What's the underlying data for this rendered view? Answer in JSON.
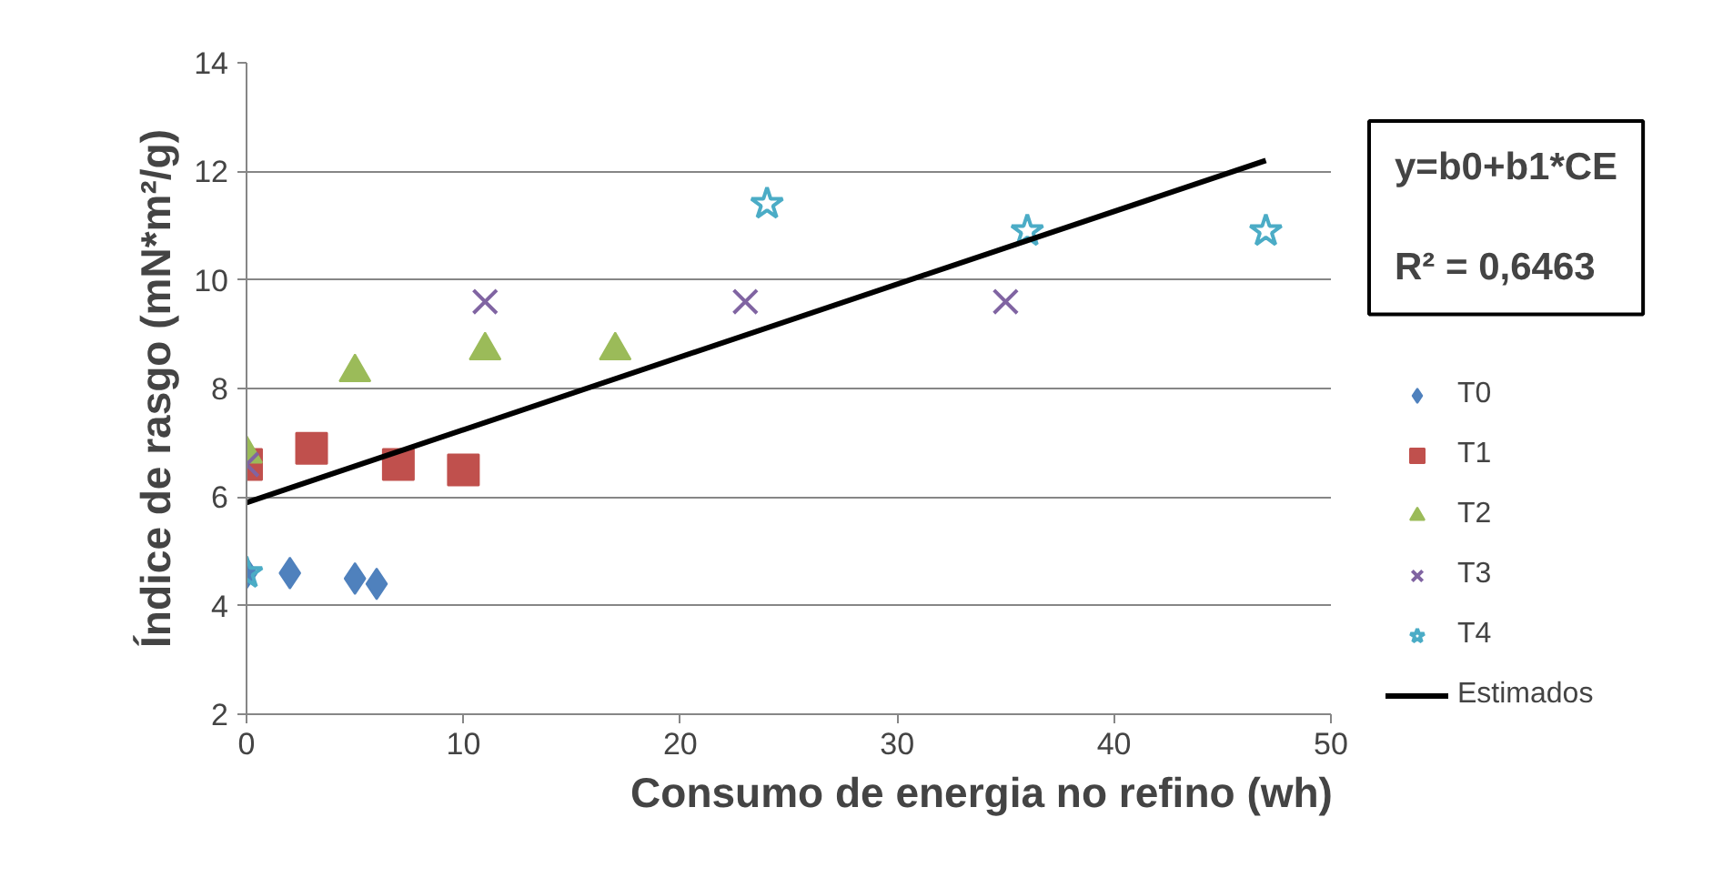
{
  "chart_data": {
    "type": "scatter",
    "xlabel": "Consumo de energia no refino (wh)",
    "ylabel": "Índice de rasgo (mN*m²/g)",
    "xlim": [
      0,
      50
    ],
    "xticks": [
      0,
      10,
      20,
      30,
      40,
      50
    ],
    "ylim": [
      2,
      14
    ],
    "yticks": [
      2,
      4,
      6,
      8,
      10,
      12,
      14
    ],
    "grid": "y",
    "legend": "right",
    "annotations": [
      "y=b0+b1*CE",
      "R² = 0,6463"
    ],
    "series": [
      {
        "name": "T0",
        "color": "#4f81bd",
        "marker": "diamond",
        "x": [
          0,
          2,
          5,
          6
        ],
        "values": [
          4.6,
          4.6,
          4.5,
          4.4
        ]
      },
      {
        "name": "T1",
        "color": "#c0504d",
        "marker": "square",
        "x": [
          0,
          3,
          7,
          10
        ],
        "values": [
          6.6,
          6.9,
          6.6,
          6.5
        ]
      },
      {
        "name": "T2",
        "color": "#9bbb59",
        "marker": "triangle",
        "x": [
          0,
          5,
          11,
          17
        ],
        "values": [
          6.8,
          8.3,
          8.7,
          8.7
        ]
      },
      {
        "name": "T3",
        "color": "#8064a2",
        "marker": "cross",
        "x": [
          0,
          11,
          23,
          35
        ],
        "values": [
          6.6,
          9.6,
          9.6,
          9.6
        ]
      },
      {
        "name": "T4",
        "color": "#4bacc6",
        "marker": "star",
        "x": [
          0,
          24,
          36,
          47
        ],
        "values": [
          4.6,
          11.4,
          10.9,
          10.9
        ]
      },
      {
        "name": "Estimados",
        "type": "line",
        "color": "#000000",
        "marker": "none",
        "line_style": "solid",
        "x": [
          0,
          47
        ],
        "values": [
          5.9,
          12.2
        ]
      }
    ]
  }
}
